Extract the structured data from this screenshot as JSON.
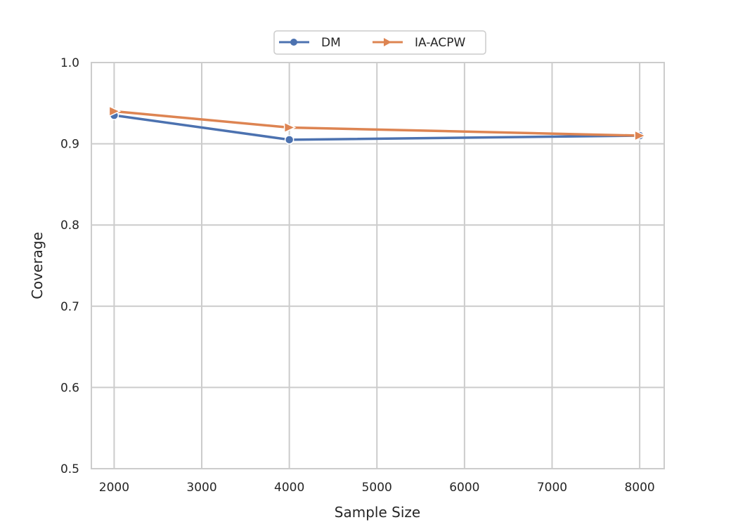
{
  "chart_data": {
    "type": "line",
    "title": "",
    "xlabel": "Sample Size",
    "ylabel": "Coverage",
    "x": [
      2000,
      4000,
      8000
    ],
    "series": [
      {
        "name": "DM",
        "values": [
          0.935,
          0.905,
          0.91
        ],
        "color": "#4c72b0",
        "marker": "circle"
      },
      {
        "name": "IA-ACPW",
        "values": [
          0.94,
          0.92,
          0.91
        ],
        "color": "#dd8452",
        "marker": "triangle-right"
      }
    ],
    "xlim": [
      1740,
      8280
    ],
    "ylim": [
      0.5,
      1.0
    ],
    "xticks": [
      2000,
      3000,
      4000,
      5000,
      6000,
      7000,
      8000
    ],
    "xtick_labels": [
      "2000",
      "3000",
      "4000",
      "5000",
      "6000",
      "7000",
      "8000"
    ],
    "yticks": [
      0.5,
      0.6,
      0.7,
      0.8,
      0.9,
      1.0
    ],
    "ytick_labels": [
      "0.5",
      "0.6",
      "0.7",
      "0.8",
      "0.9",
      "1.0"
    ],
    "grid": true,
    "legend_position": "upper center (above axes)",
    "legend_entries": [
      "DM",
      "IA-ACPW"
    ]
  },
  "colors": {
    "grid": "#cccccc",
    "spine": "#cccccc",
    "text": "#262626",
    "dm": "#4c72b0",
    "iaacpw": "#dd8452"
  }
}
